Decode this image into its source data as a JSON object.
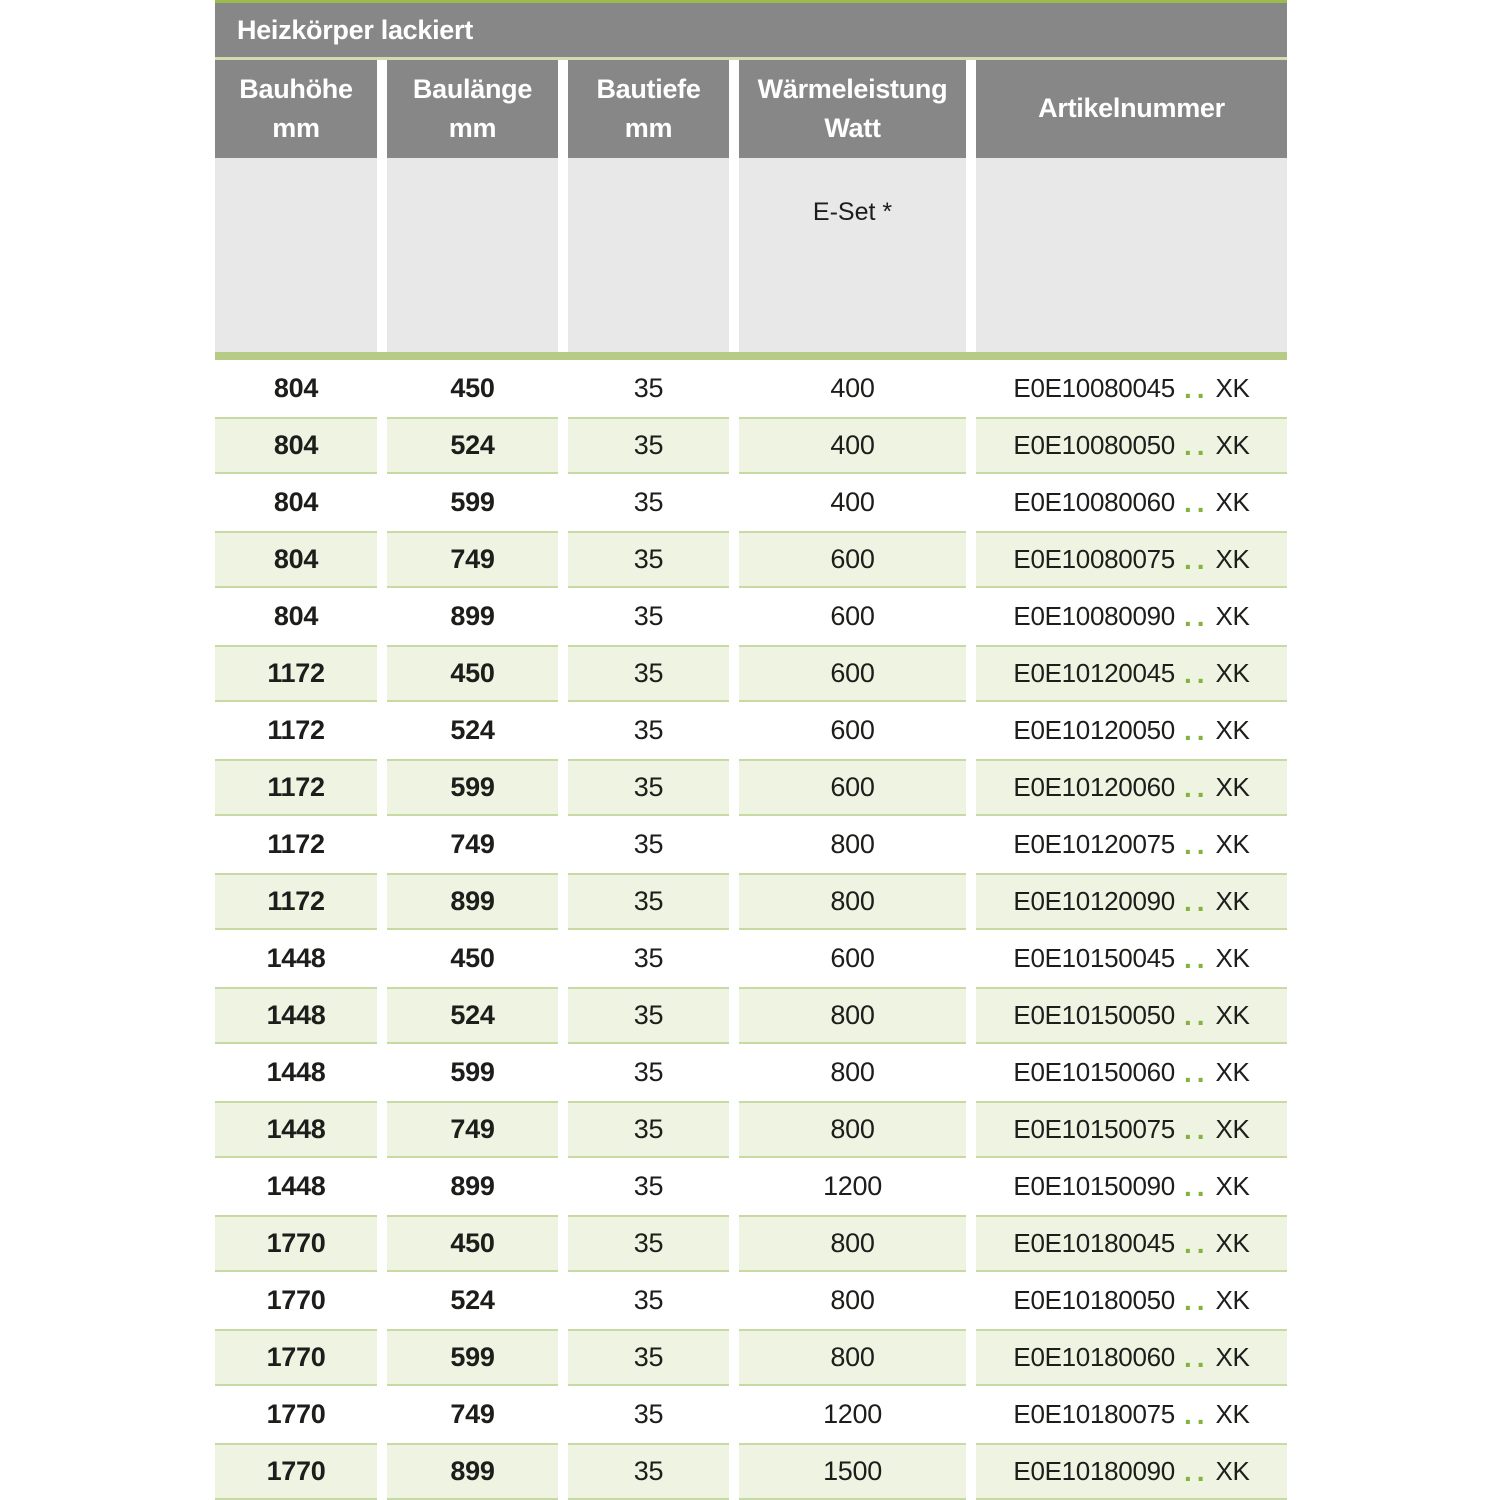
{
  "table": {
    "title": "Heizkörper lackiert",
    "columns": [
      {
        "label": "Bauhöhe",
        "unit": "mm"
      },
      {
        "label": "Baulänge",
        "unit": "mm"
      },
      {
        "label": "Bautiefe",
        "unit": "mm"
      },
      {
        "label": "Wärmeleistung",
        "unit": "Watt"
      },
      {
        "label": "Artikelnummer",
        "unit": ""
      }
    ],
    "subheader_note": "E-Set *",
    "art_dots": "..",
    "rows": [
      {
        "bauhoehe": "804",
        "baulaenge": "450",
        "bautiefe": "35",
        "watt": "400",
        "art": "E0E10080045",
        "art_suffix": "XK"
      },
      {
        "bauhoehe": "804",
        "baulaenge": "524",
        "bautiefe": "35",
        "watt": "400",
        "art": "E0E10080050",
        "art_suffix": "XK"
      },
      {
        "bauhoehe": "804",
        "baulaenge": "599",
        "bautiefe": "35",
        "watt": "400",
        "art": "E0E10080060",
        "art_suffix": "XK"
      },
      {
        "bauhoehe": "804",
        "baulaenge": "749",
        "bautiefe": "35",
        "watt": "600",
        "art": "E0E10080075",
        "art_suffix": "XK"
      },
      {
        "bauhoehe": "804",
        "baulaenge": "899",
        "bautiefe": "35",
        "watt": "600",
        "art": "E0E10080090",
        "art_suffix": "XK"
      },
      {
        "bauhoehe": "1172",
        "baulaenge": "450",
        "bautiefe": "35",
        "watt": "600",
        "art": "E0E10120045",
        "art_suffix": "XK"
      },
      {
        "bauhoehe": "1172",
        "baulaenge": "524",
        "bautiefe": "35",
        "watt": "600",
        "art": "E0E10120050",
        "art_suffix": "XK"
      },
      {
        "bauhoehe": "1172",
        "baulaenge": "599",
        "bautiefe": "35",
        "watt": "600",
        "art": "E0E10120060",
        "art_suffix": "XK"
      },
      {
        "bauhoehe": "1172",
        "baulaenge": "749",
        "bautiefe": "35",
        "watt": "800",
        "art": "E0E10120075",
        "art_suffix": "XK"
      },
      {
        "bauhoehe": "1172",
        "baulaenge": "899",
        "bautiefe": "35",
        "watt": "800",
        "art": "E0E10120090",
        "art_suffix": "XK"
      },
      {
        "bauhoehe": "1448",
        "baulaenge": "450",
        "bautiefe": "35",
        "watt": "600",
        "art": "E0E10150045",
        "art_suffix": "XK"
      },
      {
        "bauhoehe": "1448",
        "baulaenge": "524",
        "bautiefe": "35",
        "watt": "800",
        "art": "E0E10150050",
        "art_suffix": "XK"
      },
      {
        "bauhoehe": "1448",
        "baulaenge": "599",
        "bautiefe": "35",
        "watt": "800",
        "art": "E0E10150060",
        "art_suffix": "XK"
      },
      {
        "bauhoehe": "1448",
        "baulaenge": "749",
        "bautiefe": "35",
        "watt": "800",
        "art": "E0E10150075",
        "art_suffix": "XK"
      },
      {
        "bauhoehe": "1448",
        "baulaenge": "899",
        "bautiefe": "35",
        "watt": "1200",
        "art": "E0E10150090",
        "art_suffix": "XK"
      },
      {
        "bauhoehe": "1770",
        "baulaenge": "450",
        "bautiefe": "35",
        "watt": "800",
        "art": "E0E10180045",
        "art_suffix": "XK"
      },
      {
        "bauhoehe": "1770",
        "baulaenge": "524",
        "bautiefe": "35",
        "watt": "800",
        "art": "E0E10180050",
        "art_suffix": "XK"
      },
      {
        "bauhoehe": "1770",
        "baulaenge": "599",
        "bautiefe": "35",
        "watt": "800",
        "art": "E0E10180060",
        "art_suffix": "XK"
      },
      {
        "bauhoehe": "1770",
        "baulaenge": "749",
        "bautiefe": "35",
        "watt": "1200",
        "art": "E0E10180075",
        "art_suffix": "XK"
      },
      {
        "bauhoehe": "1770",
        "baulaenge": "899",
        "bautiefe": "35",
        "watt": "1500",
        "art": "E0E10180090",
        "art_suffix": "XK"
      }
    ]
  },
  "colors": {
    "header_gray": "#878787",
    "subheader_gray": "#e8e8e8",
    "top_line_green": "#9cba4e",
    "pale_line_green": "#d3dcae",
    "divider_bar_green": "#b6cc86",
    "row_bg_green": "#eef3e2",
    "row_border_green": "#c8daa4",
    "dot_green": "#84b23f",
    "text_dark": "#1d1d1b",
    "header_text": "#ffffff"
  }
}
